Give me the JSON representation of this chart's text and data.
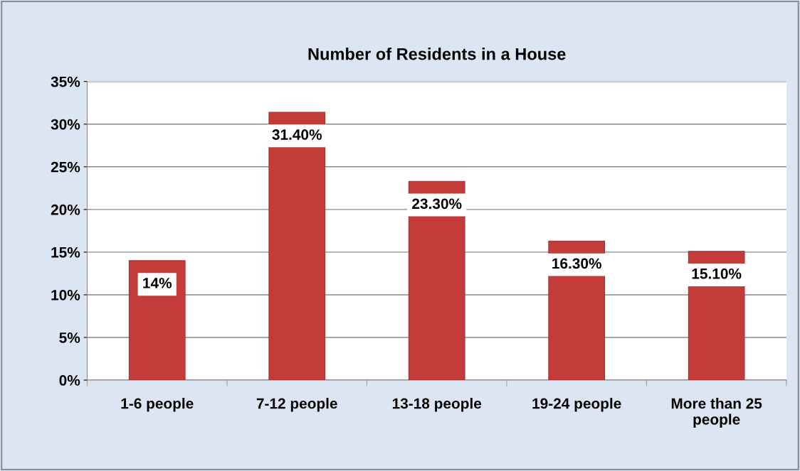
{
  "chart_data": {
    "type": "bar",
    "title": "Number of Residents in a House",
    "categories": [
      "1-6 people",
      "7-12 people",
      "13-18 people",
      "19-24 people",
      "More than 25\npeople"
    ],
    "values": [
      14,
      31.4,
      23.3,
      16.3,
      15.1
    ],
    "value_labels": [
      "14%",
      "31.40%",
      "23.30%",
      "16.30%",
      "15.10%"
    ],
    "color": "#c43c3a",
    "ylim": [
      0,
      35
    ],
    "yticks": [
      {
        "value": 0,
        "label": "0%"
      },
      {
        "value": 5,
        "label": "5%"
      },
      {
        "value": 10,
        "label": "10%"
      },
      {
        "value": 15,
        "label": "15%"
      },
      {
        "value": 20,
        "label": "20%"
      },
      {
        "value": 25,
        "label": "25%"
      },
      {
        "value": 30,
        "label": "30%"
      },
      {
        "value": 35,
        "label": "35%"
      }
    ],
    "grid": "y",
    "legend": false
  }
}
